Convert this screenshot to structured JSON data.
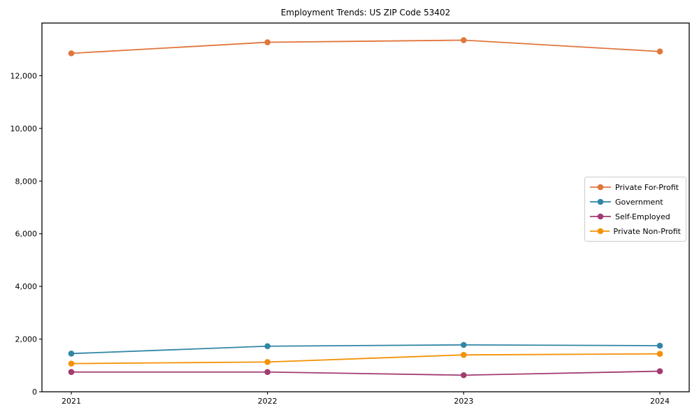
{
  "title": "Employment Trends: US ZIP Code 53402",
  "chart_data": {
    "type": "line",
    "title": "Employment Trends: US ZIP Code 53402",
    "x": [
      "2021",
      "2022",
      "2023",
      "2024"
    ],
    "series": [
      {
        "name": "Private For-Profit",
        "color": "#E1763C",
        "values": [
          12850,
          13270,
          13350,
          12920
        ]
      },
      {
        "name": "Government",
        "color": "#3186A6",
        "values": [
          1450,
          1730,
          1780,
          1750
        ]
      },
      {
        "name": "Self-Employed",
        "color": "#A23B72",
        "values": [
          750,
          750,
          630,
          780
        ]
      },
      {
        "name": "Private Non-Profit",
        "color": "#F39208",
        "values": [
          1070,
          1130,
          1400,
          1440
        ]
      }
    ],
    "xlabel": "",
    "ylabel": "",
    "ylim": [
      0,
      14000
    ],
    "yticks": [
      0,
      2000,
      4000,
      6000,
      8000,
      10000,
      12000
    ],
    "ytick_labels": [
      "0",
      "2,000",
      "4,000",
      "6,000",
      "8,000",
      "10,000",
      "12,000"
    ],
    "grid": false,
    "legend_position": "right-middle",
    "axis_color": "#000000",
    "legend_border_color": "#cccccc"
  }
}
